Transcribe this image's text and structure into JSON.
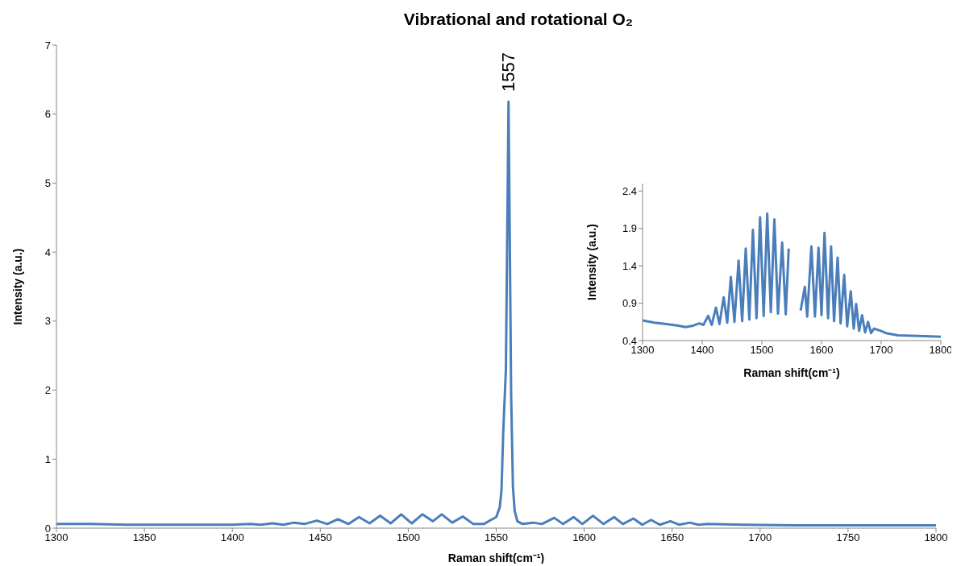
{
  "chart_data": [
    {
      "type": "line",
      "title": "Vibrational and rotational O₂",
      "xlabel": "Raman shift(cm⁻¹)",
      "ylabel": "Intensity (a.u.)",
      "x": [
        1300,
        1320,
        1340,
        1360,
        1380,
        1400,
        1410,
        1416,
        1423,
        1429,
        1435,
        1441,
        1448,
        1454,
        1460,
        1466,
        1472,
        1478,
        1484,
        1490,
        1496,
        1502,
        1508,
        1514,
        1519,
        1525,
        1531,
        1537,
        1543,
        1547,
        1550,
        1552,
        1553,
        1554,
        1555.5,
        1557,
        1558.5,
        1559.5,
        1560.5,
        1562,
        1565,
        1571,
        1576,
        1583,
        1588,
        1594,
        1599,
        1605,
        1611,
        1617,
        1622,
        1628,
        1633,
        1638,
        1643,
        1649,
        1654,
        1660,
        1665,
        1670,
        1690,
        1720,
        1800
      ],
      "series": [
        {
          "color": "#4a7ebb",
          "values": [
            0.06,
            0.06,
            0.05,
            0.05,
            0.05,
            0.05,
            0.06,
            0.05,
            0.07,
            0.05,
            0.08,
            0.06,
            0.11,
            0.06,
            0.13,
            0.06,
            0.16,
            0.07,
            0.18,
            0.07,
            0.2,
            0.07,
            0.2,
            0.1,
            0.2,
            0.08,
            0.17,
            0.06,
            0.06,
            0.12,
            0.16,
            0.3,
            0.55,
            1.4,
            2.3,
            6.18,
            1.9,
            0.6,
            0.25,
            0.1,
            0.06,
            0.08,
            0.06,
            0.15,
            0.06,
            0.16,
            0.06,
            0.18,
            0.06,
            0.16,
            0.06,
            0.14,
            0.05,
            0.12,
            0.05,
            0.1,
            0.05,
            0.08,
            0.05,
            0.06,
            0.05,
            0.04,
            0.04
          ]
        }
      ],
      "xlim": [
        1300,
        1800
      ],
      "xticks": [
        1300,
        1350,
        1400,
        1450,
        1500,
        1550,
        1600,
        1650,
        1700,
        1750,
        1800
      ],
      "ylim": [
        0,
        7
      ],
      "yticks": [
        0,
        1,
        2,
        3,
        4,
        5,
        6,
        7
      ],
      "annotations": [
        {
          "text": "1557",
          "x": 1557,
          "y": 6.18
        }
      ]
    },
    {
      "type": "line",
      "xlabel": "Raman shift(cm⁻¹)",
      "ylabel": "Intensity (a.u.)",
      "x": [
        1300,
        1320,
        1340,
        1360,
        1372,
        1385,
        1395,
        1402,
        1410,
        1416,
        1423,
        1429,
        1436,
        1442,
        1448,
        1454,
        1461,
        1467,
        1473,
        1479,
        1485,
        1491,
        1497,
        1503,
        1509,
        1515,
        1521,
        1527,
        1534,
        1540,
        1545,
        1548,
        1563,
        1565,
        1572,
        1576,
        1583,
        1589,
        1595,
        1600,
        1605,
        1611,
        1616,
        1621,
        1627,
        1632,
        1638,
        1643,
        1649,
        1654,
        1658,
        1663,
        1668,
        1673,
        1678,
        1683,
        1688,
        1699,
        1708,
        1728,
        1773,
        1800
      ],
      "series": [
        {
          "color": "#4a7ebb",
          "values": [
            0.67,
            0.64,
            0.62,
            0.6,
            0.58,
            0.6,
            0.63,
            0.61,
            0.73,
            0.61,
            0.84,
            0.62,
            0.98,
            0.64,
            1.25,
            0.65,
            1.47,
            0.66,
            1.63,
            0.68,
            1.88,
            0.7,
            2.05,
            0.73,
            2.1,
            0.78,
            2.02,
            0.76,
            1.71,
            0.75,
            1.63,
            null,
            null,
            0.8,
            1.12,
            0.72,
            1.66,
            0.72,
            1.64,
            0.74,
            1.84,
            0.7,
            1.66,
            0.66,
            1.51,
            0.63,
            1.28,
            0.59,
            1.06,
            0.56,
            0.89,
            0.53,
            0.74,
            0.51,
            0.65,
            0.5,
            0.56,
            0.53,
            0.5,
            0.47,
            0.46,
            0.45
          ]
        }
      ],
      "xlim": [
        1300,
        1800
      ],
      "xticks": [
        1300,
        1400,
        1500,
        1600,
        1700,
        1800
      ],
      "ylim": [
        0.4,
        2.5
      ],
      "yticks": [
        0.4,
        0.9,
        1.4,
        1.9,
        2.4
      ]
    }
  ]
}
